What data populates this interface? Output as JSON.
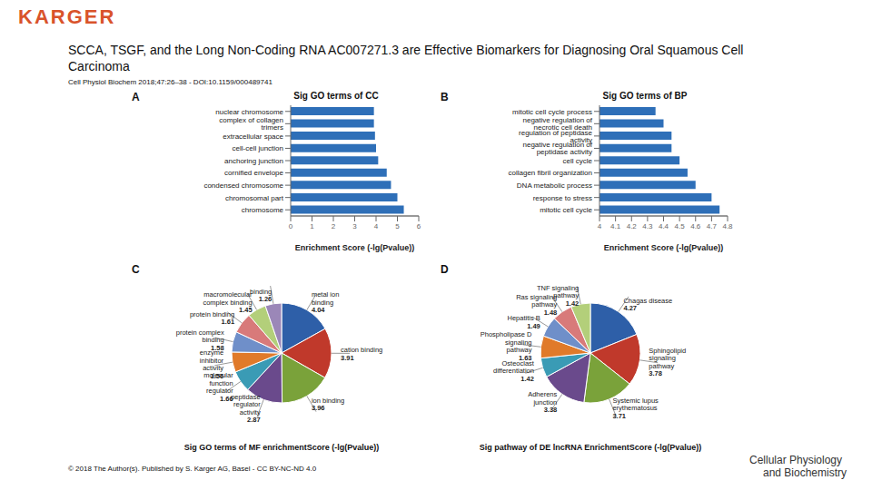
{
  "header": {
    "logo": "KARGER",
    "title": "SCCA, TSGF, and the Long Non-Coding RNA AC007271.3 are Effective Biomarkers for Diagnosing Oral Squamous Cell Carcinoma",
    "citation": "Cell Physiol Biochem 2018;47:26–38 - DOI:10.1159/000489741"
  },
  "footer": {
    "copyright": "© 2018 The Author(s). Published by S. Karger AG, Basel - CC BY-NC-ND 4.0",
    "journal": [
      "Cellular Physiology",
      "and Biochemistry"
    ]
  },
  "chart_data": [
    {
      "panel": "A",
      "type": "bar",
      "orientation": "horizontal",
      "title": "Sig GO terms of CC",
      "xlabel": "Enrichment Score (-lg(Pvalue))",
      "categories": [
        "nuclear chromosome",
        "complex of collagen trimers",
        "extracellular space",
        "cell-cell junction",
        "anchoring junction",
        "cornified envelope",
        "condensed chromosome",
        "chromosomal part",
        "chromosome"
      ],
      "values": [
        3.9,
        3.9,
        3.95,
        4.0,
        4.1,
        4.5,
        4.7,
        5.0,
        5.3
      ],
      "color": "#2e6fb8",
      "xlim": [
        0,
        6
      ],
      "xticks": [
        0,
        1,
        2,
        3,
        4,
        5,
        6
      ]
    },
    {
      "panel": "B",
      "type": "bar",
      "orientation": "horizontal",
      "title": "Sig GO terms of BP",
      "xlabel": "Enrichment Score (-lg(Pvalue))",
      "categories": [
        "mitotic cell cycle process",
        "negative regulation of necrotic cell death",
        "regulation of peptidase activity",
        "negative regulation of peptidase activity",
        "cell cycle",
        "collagen fibril organization",
        "DNA metabolic process",
        "response to stress",
        "mitotic cell cycle"
      ],
      "values": [
        4.35,
        4.4,
        4.45,
        4.45,
        4.5,
        4.55,
        4.6,
        4.7,
        4.75
      ],
      "color": "#2e6fb8",
      "xlim": [
        4,
        4.8
      ],
      "xticks": [
        4,
        4.1,
        4.2,
        4.3,
        4.4,
        4.5,
        4.6,
        4.7,
        4.8
      ]
    },
    {
      "panel": "C",
      "type": "pie",
      "title": "Sig GO terms of MF enrichmentScore (-lg(Pvalue))",
      "data_labels": true,
      "categories": [
        "metal ion binding",
        "cation binding",
        "ion binding",
        "peptidase regulator activity",
        "molecular function regulator",
        "enzyme inhibitor activity",
        "protein complex binding",
        "protein binding",
        "macromolecular complex binding",
        "binding"
      ],
      "values": [
        4.04,
        3.91,
        3.96,
        2.87,
        1.66,
        1.56,
        1.58,
        1.61,
        1.45,
        1.26
      ],
      "colors": [
        "#2e5fa8",
        "#c0392b",
        "#7aa23a",
        "#6a4a8c",
        "#3a9bb5",
        "#e07a2a",
        "#6f8fc9",
        "#d87a7a",
        "#b3cf7a",
        "#9b87b8"
      ]
    },
    {
      "panel": "D",
      "type": "pie",
      "title": "Sig pathway of DE lncRNA EnrichmentScore (-lg(Pvalue))",
      "data_labels": true,
      "categories": [
        "Chagas disease",
        "Sphingolipid signaling pathway",
        "Systemic lupus erythematosus",
        "Adherens junction",
        "Osteoclast differentiation",
        "Phospholipase D signaling pathway",
        "Hepatitis B",
        "Ras signaling pathway",
        "TNF signaling pathway"
      ],
      "values": [
        4.27,
        3.78,
        3.71,
        3.38,
        1.42,
        1.63,
        1.49,
        1.48,
        1.42
      ],
      "colors": [
        "#2e5fa8",
        "#c0392b",
        "#7aa23a",
        "#6a4a8c",
        "#3a9bb5",
        "#e07a2a",
        "#6f8fc9",
        "#d87a7a",
        "#b3cf7a"
      ]
    }
  ]
}
